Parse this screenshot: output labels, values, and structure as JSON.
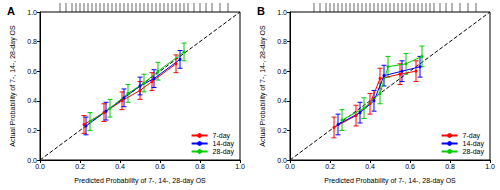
{
  "chart_data": [
    {
      "type": "scatter",
      "title": "A",
      "x_label": "Predicted Probability of 7-, 14-, 28-day OS",
      "y_label": "Actual Probability of 7-, 14-, 28-day OS",
      "xlim": [
        0,
        1
      ],
      "ylim": [
        0,
        1
      ],
      "xticks": [
        {
          "value": 0,
          "label": "0.0"
        },
        {
          "value": 0.2,
          "label": "0.2"
        },
        {
          "value": 0.4,
          "label": "0.4"
        },
        {
          "value": 0.6,
          "label": "0.6"
        },
        {
          "value": 0.8,
          "label": "0.8"
        },
        {
          "value": 1,
          "label": "1.0"
        }
      ],
      "yticks": [
        {
          "value": 0,
          "label": "0.0"
        },
        {
          "value": 0.2,
          "label": "0.2"
        },
        {
          "value": 0.4,
          "label": "0.4"
        },
        {
          "value": 0.6,
          "label": "0.6"
        },
        {
          "value": 0.8,
          "label": "0.8"
        },
        {
          "value": 1,
          "label": "1.0"
        }
      ],
      "grid": false,
      "legend": "lower right",
      "series": [
        {
          "name": "7-day",
          "color": "#ff0000",
          "marker": "circle",
          "line_style": "solid",
          "x": [
            0.22,
            0.32,
            0.41,
            0.5,
            0.56,
            0.68
          ],
          "values": [
            0.24,
            0.32,
            0.4,
            0.47,
            0.53,
            0.65
          ],
          "lower": [
            0.18,
            0.26,
            0.34,
            0.41,
            0.47,
            0.59
          ],
          "upper": [
            0.3,
            0.38,
            0.46,
            0.53,
            0.59,
            0.71
          ]
        },
        {
          "name": "14-day",
          "color": "#0000ff",
          "marker": "circle",
          "line_style": "solid",
          "x": [
            0.23,
            0.33,
            0.42,
            0.5,
            0.57,
            0.7
          ],
          "values": [
            0.23,
            0.33,
            0.42,
            0.5,
            0.55,
            0.68
          ],
          "lower": [
            0.17,
            0.27,
            0.36,
            0.44,
            0.49,
            0.62
          ],
          "upper": [
            0.29,
            0.39,
            0.48,
            0.56,
            0.61,
            0.74
          ]
        },
        {
          "name": "28-day",
          "color": "#00cc00",
          "marker": "circle",
          "line_style": "solid",
          "x": [
            0.25,
            0.35,
            0.44,
            0.52,
            0.59,
            0.72
          ],
          "values": [
            0.26,
            0.35,
            0.45,
            0.52,
            0.6,
            0.73
          ],
          "lower": [
            0.2,
            0.29,
            0.39,
            0.46,
            0.54,
            0.67
          ],
          "upper": [
            0.32,
            0.41,
            0.51,
            0.58,
            0.66,
            0.79
          ]
        }
      ],
      "rug": [
        0.1,
        0.13,
        0.16,
        0.18,
        0.2,
        0.22,
        0.24,
        0.26,
        0.28,
        0.3,
        0.32,
        0.34,
        0.36,
        0.38,
        0.4,
        0.42,
        0.44,
        0.46,
        0.48,
        0.5,
        0.52,
        0.54,
        0.56,
        0.58,
        0.6,
        0.62,
        0.64,
        0.66,
        0.68,
        0.7,
        0.72,
        0.74,
        0.77,
        0.8,
        0.83,
        0.86,
        0.9,
        0.94
      ]
    },
    {
      "type": "scatter",
      "title": "B",
      "x_label": "Predicted Probability of 7-, 14-, 28-day OS",
      "y_label": "Actual Probability of 7-, 14-, 28-day OS",
      "xlim": [
        0,
        1
      ],
      "ylim": [
        0,
        1
      ],
      "xticks": [
        {
          "value": 0,
          "label": "0.0"
        },
        {
          "value": 0.2,
          "label": "0.2"
        },
        {
          "value": 0.4,
          "label": "0.4"
        },
        {
          "value": 0.6,
          "label": "0.6"
        },
        {
          "value": 0.8,
          "label": "0.8"
        },
        {
          "value": 1,
          "label": "1.0"
        }
      ],
      "yticks": [
        {
          "value": 0,
          "label": "0.0"
        },
        {
          "value": 0.2,
          "label": "0.2"
        },
        {
          "value": 0.4,
          "label": "0.4"
        },
        {
          "value": 0.6,
          "label": "0.6"
        },
        {
          "value": 0.8,
          "label": "0.8"
        },
        {
          "value": 1,
          "label": "1.0"
        }
      ],
      "grid": false,
      "legend": "lower right",
      "series": [
        {
          "name": "7-day",
          "color": "#ff0000",
          "marker": "circle",
          "line_style": "solid",
          "x": [
            0.22,
            0.33,
            0.4,
            0.45,
            0.55,
            0.63
          ],
          "values": [
            0.22,
            0.3,
            0.38,
            0.55,
            0.58,
            0.6
          ],
          "lower": [
            0.15,
            0.23,
            0.31,
            0.48,
            0.51,
            0.53
          ],
          "upper": [
            0.29,
            0.37,
            0.45,
            0.62,
            0.65,
            0.67
          ]
        },
        {
          "name": "14-day",
          "color": "#0000ff",
          "marker": "circle",
          "line_style": "solid",
          "x": [
            0.24,
            0.35,
            0.42,
            0.47,
            0.56,
            0.65
          ],
          "values": [
            0.24,
            0.32,
            0.4,
            0.57,
            0.6,
            0.63
          ],
          "lower": [
            0.17,
            0.25,
            0.33,
            0.5,
            0.53,
            0.56
          ],
          "upper": [
            0.31,
            0.39,
            0.47,
            0.64,
            0.67,
            0.7
          ]
        },
        {
          "name": "28-day",
          "color": "#00cc00",
          "marker": "circle",
          "line_style": "solid",
          "x": [
            0.26,
            0.37,
            0.45,
            0.49,
            0.58,
            0.66
          ],
          "values": [
            0.27,
            0.35,
            0.45,
            0.63,
            0.65,
            0.7
          ],
          "lower": [
            0.2,
            0.28,
            0.38,
            0.56,
            0.58,
            0.63
          ],
          "upper": [
            0.34,
            0.42,
            0.52,
            0.7,
            0.72,
            0.77
          ]
        }
      ],
      "rug": [
        0.12,
        0.15,
        0.18,
        0.2,
        0.22,
        0.24,
        0.26,
        0.28,
        0.3,
        0.32,
        0.34,
        0.36,
        0.38,
        0.4,
        0.42,
        0.44,
        0.46,
        0.48,
        0.5,
        0.52,
        0.54,
        0.56,
        0.58,
        0.6,
        0.62,
        0.64,
        0.66,
        0.68,
        0.7,
        0.72,
        0.75,
        0.78,
        0.81,
        0.85,
        0.89,
        0.93
      ]
    }
  ]
}
